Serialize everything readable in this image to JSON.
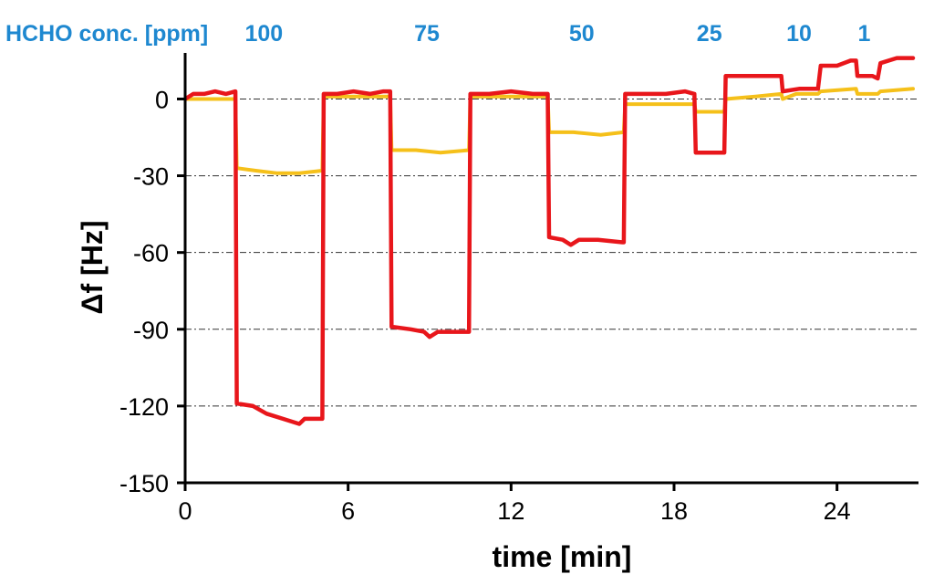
{
  "chart_data": {
    "type": "line",
    "xlabel": "time [min]",
    "ylabel": "Δf [Hz]",
    "xlim": [
      0,
      27
    ],
    "ylim": [
      -150,
      18
    ],
    "x_ticks": [
      "0",
      "6",
      "12",
      "18",
      "24"
    ],
    "y_ticks": [
      "0",
      "-30",
      "-60",
      "-90",
      "-120",
      "-150"
    ],
    "gridlines": [
      0,
      -30,
      -60,
      -90,
      -120
    ],
    "grid": "horizontal dash-dot",
    "annotation_header": "HCHO conc. [ppm]",
    "concentration_labels": [
      {
        "text": "100",
        "x": 2.9
      },
      {
        "text": "75",
        "x": 8.9
      },
      {
        "text": "50",
        "x": 14.6
      },
      {
        "text": "25",
        "x": 19.3
      },
      {
        "text": "10",
        "x": 22.6
      },
      {
        "text": "1",
        "x": 25.0
      }
    ],
    "colors": {
      "concentration_text": "#1e88d0",
      "series_red": "#e8161b",
      "series_yellow": "#f5c01a",
      "axis": "#000000",
      "grid": "#333333"
    },
    "series": [
      {
        "color": "#e8161b",
        "points": [
          [
            0,
            0
          ],
          [
            0.3,
            2
          ],
          [
            0.7,
            2
          ],
          [
            1.1,
            3
          ],
          [
            1.5,
            2
          ],
          [
            1.85,
            3
          ],
          [
            1.9,
            -119
          ],
          [
            2.5,
            -120
          ],
          [
            3.0,
            -123
          ],
          [
            3.6,
            -125
          ],
          [
            4.2,
            -127
          ],
          [
            4.4,
            -125
          ],
          [
            5.0,
            -125
          ],
          [
            5.05,
            -125
          ],
          [
            5.1,
            2
          ],
          [
            5.6,
            2
          ],
          [
            6.2,
            3
          ],
          [
            6.8,
            2
          ],
          [
            7.3,
            3
          ],
          [
            7.55,
            3
          ],
          [
            7.6,
            -89
          ],
          [
            8.3,
            -90
          ],
          [
            8.8,
            -91
          ],
          [
            9.0,
            -93
          ],
          [
            9.3,
            -91
          ],
          [
            10.4,
            -91
          ],
          [
            10.45,
            -91
          ],
          [
            10.5,
            2
          ],
          [
            11.2,
            2
          ],
          [
            12.0,
            3
          ],
          [
            12.8,
            2
          ],
          [
            13.3,
            2
          ],
          [
            13.35,
            2
          ],
          [
            13.4,
            -54
          ],
          [
            13.9,
            -55
          ],
          [
            14.2,
            -57
          ],
          [
            14.5,
            -55
          ],
          [
            15.2,
            -55
          ],
          [
            16.1,
            -56
          ],
          [
            16.15,
            -56
          ],
          [
            16.2,
            2
          ],
          [
            16.9,
            2
          ],
          [
            17.7,
            2
          ],
          [
            18.4,
            3
          ],
          [
            18.75,
            2
          ],
          [
            18.8,
            -21
          ],
          [
            19.5,
            -21
          ],
          [
            19.85,
            -21
          ],
          [
            19.9,
            9
          ],
          [
            20.6,
            9
          ],
          [
            21.4,
            9
          ],
          [
            21.95,
            9
          ],
          [
            22.0,
            3
          ],
          [
            22.6,
            4
          ],
          [
            23.3,
            4
          ],
          [
            23.4,
            13
          ],
          [
            24.0,
            13
          ],
          [
            24.5,
            15
          ],
          [
            24.7,
            15
          ],
          [
            24.75,
            9
          ],
          [
            25.3,
            9
          ],
          [
            25.5,
            8
          ],
          [
            25.6,
            14
          ],
          [
            26.2,
            16
          ],
          [
            26.8,
            16
          ]
        ]
      },
      {
        "color": "#f5c01a",
        "points": [
          [
            0,
            0
          ],
          [
            0.8,
            0
          ],
          [
            1.5,
            0
          ],
          [
            1.85,
            0
          ],
          [
            1.9,
            -27
          ],
          [
            2.6,
            -28
          ],
          [
            3.4,
            -29
          ],
          [
            4.2,
            -29
          ],
          [
            5.05,
            -28
          ],
          [
            5.1,
            1
          ],
          [
            6.2,
            1
          ],
          [
            7.55,
            1
          ],
          [
            7.6,
            -20
          ],
          [
            8.5,
            -20
          ],
          [
            9.4,
            -21
          ],
          [
            10.45,
            -20
          ],
          [
            10.5,
            1
          ],
          [
            12.0,
            1
          ],
          [
            13.35,
            1
          ],
          [
            13.4,
            -13
          ],
          [
            14.3,
            -13
          ],
          [
            15.3,
            -14
          ],
          [
            16.15,
            -13
          ],
          [
            16.2,
            -2
          ],
          [
            17.3,
            -2
          ],
          [
            18.75,
            -2
          ],
          [
            18.8,
            -5
          ],
          [
            19.85,
            -5
          ],
          [
            19.9,
            0
          ],
          [
            21.0,
            1
          ],
          [
            21.95,
            2
          ],
          [
            22.0,
            0
          ],
          [
            22.5,
            2
          ],
          [
            23.3,
            2
          ],
          [
            23.4,
            3
          ],
          [
            24.7,
            4
          ],
          [
            24.75,
            2
          ],
          [
            25.5,
            2
          ],
          [
            25.6,
            3
          ],
          [
            26.8,
            4
          ]
        ]
      }
    ]
  }
}
